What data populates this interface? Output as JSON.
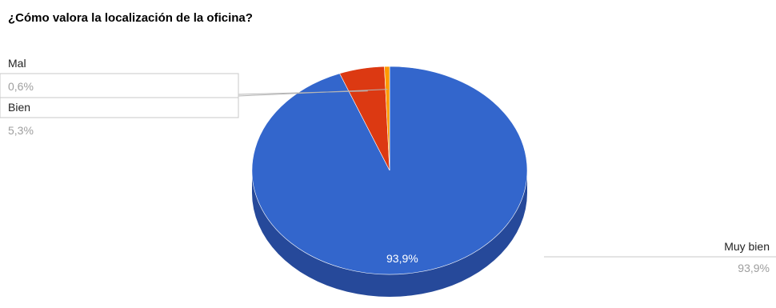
{
  "chart_data": {
    "type": "pie",
    "title": "¿Cómo valora la localización de la oficina?",
    "is_3d": true,
    "categories": [
      "Muy bien",
      "Bien",
      "Mal"
    ],
    "values": [
      93.9,
      5.3,
      0.6
    ],
    "value_labels": [
      "93,9%",
      "5,3%",
      "0,6%"
    ],
    "inside_label": "93,9%",
    "colors": [
      "#3366cc",
      "#dc3912",
      "#ff9900"
    ],
    "side_colors": [
      "#26499a",
      "#9a280d",
      "#b36b00"
    ],
    "legend": "labels-with-leader-lines"
  }
}
